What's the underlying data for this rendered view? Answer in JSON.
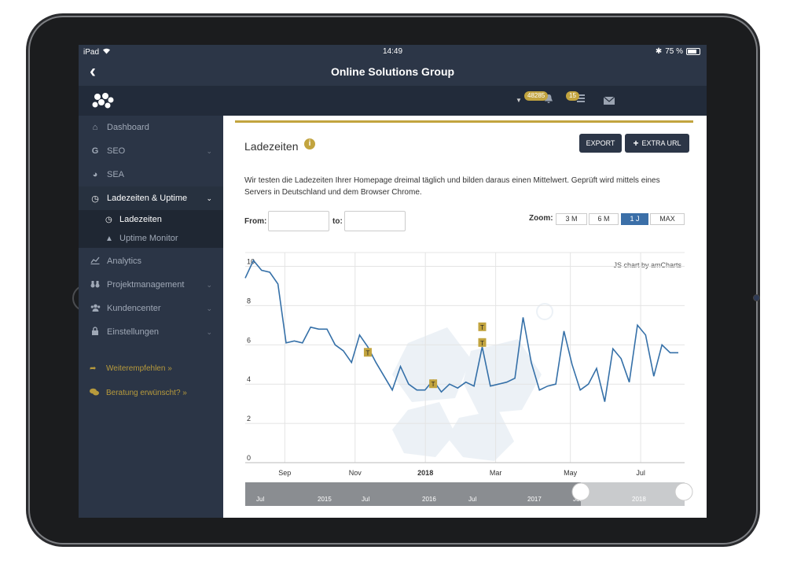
{
  "status_bar": {
    "device": "iPad",
    "time": "14:49",
    "battery": "75 %"
  },
  "nav_bar": {
    "title": "Online Solutions Group"
  },
  "top_bar": {
    "notifications_count": "48285",
    "messages_count": "15"
  },
  "sidebar": {
    "items": [
      {
        "label": "Dashboard",
        "icon": "home-icon"
      },
      {
        "label": "SEO",
        "icon": "google-icon"
      },
      {
        "label": "SEA",
        "icon": "pie-chart-icon"
      },
      {
        "label": "Ladezeiten & Uptime",
        "icon": "clock-icon"
      },
      {
        "label": "Analytics",
        "icon": "line-chart-icon"
      },
      {
        "label": "Projektmanagement",
        "icon": "binoculars-icon"
      },
      {
        "label": "Kundencenter",
        "icon": "users-icon"
      },
      {
        "label": "Einstellungen",
        "icon": "lock-icon"
      }
    ],
    "sub_items": [
      {
        "label": "Ladezeiten"
      },
      {
        "label": "Uptime Monitor"
      }
    ],
    "promo": [
      {
        "label": "Weiterempfehlen »"
      },
      {
        "label": "Beratung erwünscht? »"
      }
    ]
  },
  "card": {
    "title": "Ladezeiten",
    "export_label": "EXPORT",
    "extra_url_label": "EXTRA URL",
    "description": "Wir testen die Ladezeiten Ihrer Homepage dreimal täglich und bilden daraus einen Mittelwert. Geprüft wird mittels eines Servers in Deutschland und dem Browser Chrome.",
    "from_label": "From:",
    "to_label": "to:",
    "zoom_label": "Zoom:",
    "zoom_options": [
      "3 M",
      "6 M",
      "1 J",
      "MAX"
    ],
    "zoom_selected": "1 J",
    "credit": "JS chart by amCharts"
  },
  "chart_data": {
    "type": "line",
    "xlabel": "",
    "ylabel": "",
    "y_ticks": [
      "0",
      "2",
      "4",
      "6",
      "8",
      "10"
    ],
    "ylim": [
      0,
      10.5
    ],
    "x_ticks": [
      "Sep",
      "Nov",
      "2018",
      "Mar",
      "May",
      "Jul"
    ],
    "x_tick_positions": [
      0.09,
      0.25,
      0.41,
      0.57,
      0.74,
      0.9
    ],
    "series": [
      {
        "values": [
          9.4,
          10.3,
          9.8,
          9.7,
          9.1,
          6.1,
          6.2,
          6.1,
          6.9,
          6.8,
          6.8,
          6.0,
          5.7,
          5.1,
          6.5,
          5.9,
          5.1,
          4.4,
          3.7,
          4.9,
          4.0,
          3.7,
          3.7,
          4.2,
          3.6,
          4.0,
          3.8,
          4.1,
          3.9,
          5.9,
          3.9,
          4.0,
          4.1,
          4.3,
          7.4,
          5.1,
          3.7,
          3.9,
          4.0,
          6.7,
          5.0,
          3.7,
          4.0,
          4.8,
          3.1,
          5.8,
          5.3,
          4.1,
          7.0,
          6.5,
          4.4,
          6.0,
          5.6,
          5.6
        ]
      }
    ],
    "annotations": [
      {
        "label": "T",
        "index": 15,
        "y": 5.6
      },
      {
        "label": "T",
        "index": 23,
        "y": 4.0
      },
      {
        "label": "T",
        "index": 29,
        "y": 6.9
      },
      {
        "label": "T",
        "index": 29,
        "y": 6.1
      }
    ],
    "scrollbar_labels": [
      "Jul",
      "2015",
      "Jul",
      "2016",
      "Jul",
      "2017",
      "Jul",
      "2018"
    ],
    "grid": true,
    "colors": {
      "line": "#3570a8",
      "annotation": "#c2a43f"
    }
  }
}
